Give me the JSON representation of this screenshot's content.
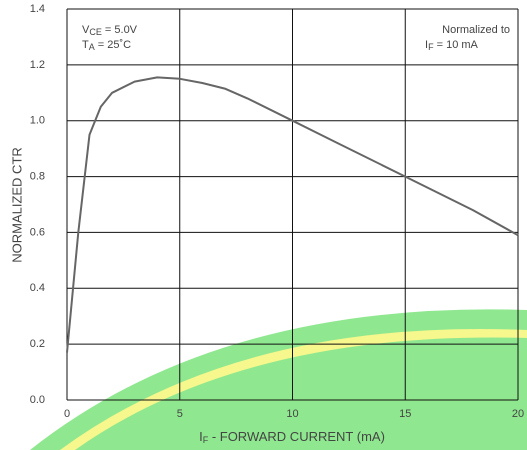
{
  "chart_data": {
    "type": "line",
    "ylabel": "NORMALIZED CTR",
    "xlabel": {
      "main": "I",
      "sub": "F",
      "rest": " - FORWARD CURRENT (mA)"
    },
    "annotations": [
      {
        "main": "V",
        "sub": "CE",
        "rest": " = 5.0V"
      },
      {
        "main": "T",
        "sub": "A",
        "rest": " = 25˚C"
      },
      {
        "text": "Normalized to"
      },
      {
        "main": "I",
        "sub": "F",
        "rest": " = 10 mA"
      }
    ],
    "x": [
      0,
      0.5,
      1,
      1.5,
      2,
      3,
      4,
      5,
      6,
      7,
      8,
      10,
      12,
      15,
      18,
      20
    ],
    "values": [
      0.17,
      0.6,
      0.95,
      1.05,
      1.1,
      1.14,
      1.155,
      1.15,
      1.135,
      1.115,
      1.08,
      1.0,
      0.92,
      0.8,
      0.68,
      0.59
    ],
    "color": "#666666",
    "xlim": [
      0,
      20
    ],
    "xticks": [
      0,
      5,
      10,
      15,
      20
    ],
    "ylim": [
      0,
      1.4
    ],
    "yticks": [
      {
        "value": 0,
        "label": "0.0"
      },
      0.2,
      0.4,
      0.6,
      0.8,
      {
        "value": 1,
        "label": "1.0"
      },
      1.2,
      1.4
    ],
    "grid": true
  }
}
